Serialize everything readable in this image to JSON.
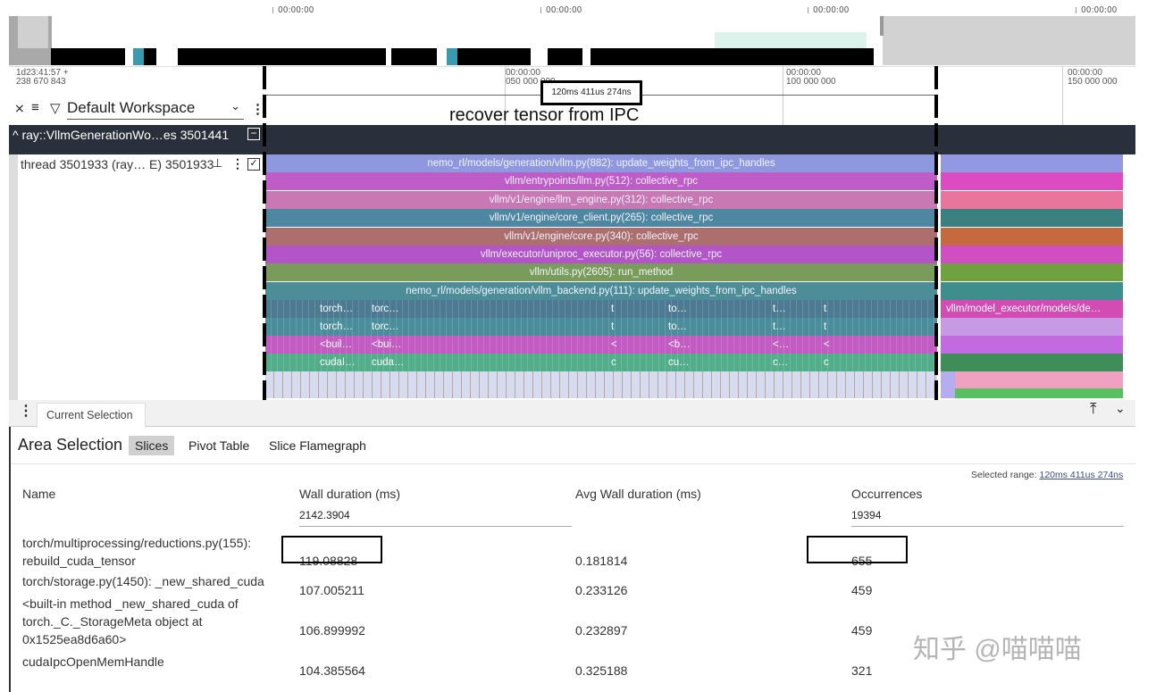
{
  "overview": {
    "ticks": [
      "00:00:00",
      "00:00:00",
      "00:00:00",
      "00:00:00"
    ]
  },
  "ruler": {
    "origin_line1": "1d23:41:57 +",
    "origin_line2": "238 670 843",
    "ticks": [
      {
        "l1": "00:00:00",
        "l2": "050 000 000"
      },
      {
        "l1": "00:00:00",
        "l2": "100 000 000"
      },
      {
        "l1": "00:00:00",
        "l2": "150 000 000"
      }
    ],
    "selection_duration": "120ms 411us 274ns",
    "annotation": "recover tensor from IPC"
  },
  "toolbar": {
    "workspace": "Default Workspace"
  },
  "process": {
    "label": "ray::VllmGenerationWo…es 3501441"
  },
  "thread": {
    "label": "thread 3501933 (ray… E) 3501933"
  },
  "slices": [
    {
      "label": "nemo_rl/models/generation/vllm.py(882): update_weights_from_ipc_handles",
      "color": "#8e98de",
      "right": "#9299e2"
    },
    {
      "label": "vllm/entrypoints/llm.py(512): collective_rpc",
      "color": "#c05cc8",
      "right": "#dc4cc0"
    },
    {
      "label": "vllm/v1/engine/llm_engine.py(312): collective_rpc",
      "color": "#c878b2",
      "right": "#ea759c"
    },
    {
      "label": "vllm/v1/engine/core_client.py(265): collective_rpc",
      "color": "#4d87a2",
      "right": "#3b8080"
    },
    {
      "label": "vllm/v1/engine/core.py(340): collective_rpc",
      "color": "#ad6e6e",
      "right": "#c7693f"
    },
    {
      "label": "vllm/executor/uniproc_executor.py(56): collective_rpc",
      "color": "#b454c9",
      "right": "#d04ec2"
    },
    {
      "label": "vllm/utils.py(2605): run_method",
      "color": "#7a9c5a",
      "right": "#70a13f"
    },
    {
      "label": "nemo_rl/models/generation/vllm_backend.py(111): update_weights_from_ipc_handles",
      "color": "#4c8d98",
      "right": "#3e8e8e"
    }
  ],
  "sub_rows": [
    {
      "color": "#4b7a92",
      "right": "#d24cb4",
      "right_label": "vllm/model_executor/models/de…",
      "cells": [
        "torch…",
        "torc…",
        "t",
        "to…",
        "t…",
        "t"
      ]
    },
    {
      "color": "#4a8d9b",
      "right": "#c79ae6",
      "cells": [
        "torch…",
        "torc…",
        "t",
        "to…",
        "t…",
        "t"
      ]
    },
    {
      "color": "#c25bc2",
      "right": "#c36ae0",
      "cells": [
        "<buil…",
        "<bui…",
        "<",
        "<b…",
        "<…",
        "<"
      ]
    },
    {
      "color": "#52ad8a",
      "right": "#3f8e5a",
      "cells": [
        "cudaI…",
        "cuda…",
        "c",
        "cu…",
        "c…",
        "c"
      ]
    }
  ],
  "panel": {
    "tab": "Current Selection",
    "title": "Area Selection",
    "tabs": [
      "Slices",
      "Pivot Table",
      "Slice Flamegraph"
    ],
    "selected_range_label": "Selected range:",
    "selected_range": "120ms 411us 274ns",
    "columns": [
      "Name",
      "Wall duration (ms)",
      "Avg Wall duration (ms)",
      "Occurrences"
    ],
    "totals": {
      "wall": "2142.3904",
      "occ": "19394"
    },
    "rows": [
      {
        "name": [
          "torch/multiprocessing/reductions.py(155):",
          "rebuild_cuda_tensor"
        ],
        "wall": "119.08828",
        "avg": "0.181814",
        "occ": "655"
      },
      {
        "name": [
          "torch/storage.py(1450): _new_shared_cuda"
        ],
        "wall": "107.005211",
        "avg": "0.233126",
        "occ": "459"
      },
      {
        "name": [
          "<built-in method _new_shared_cuda of",
          "torch._C._StorageMeta object at",
          "0x1525ea8d6a60>"
        ],
        "wall": "106.899992",
        "avg": "0.232897",
        "occ": "459"
      },
      {
        "name": [
          "cudaIpcOpenMemHandle"
        ],
        "wall": "104.385564",
        "avg": "0.325188",
        "occ": "321"
      }
    ]
  },
  "watermark": "知乎 @喵喵喵"
}
